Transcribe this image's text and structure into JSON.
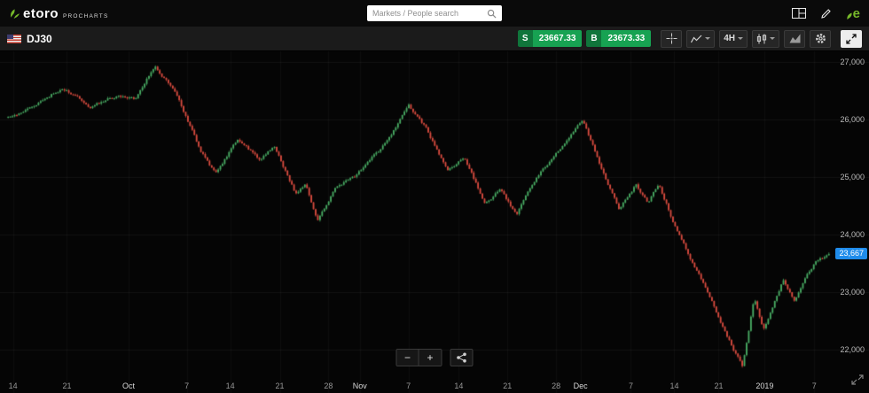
{
  "header": {
    "logo_text": "etoro",
    "logo_sub": "PROCHARTS",
    "etoro_badge": "e",
    "search_placeholder": "Markets / People search"
  },
  "toolbar": {
    "instrument": "DJ30",
    "sell_label": "S",
    "sell_price": "23667.33",
    "buy_label": "B",
    "buy_price": "23673.33",
    "timeframe": "4H"
  },
  "zoom_controls": {
    "minus": "−",
    "plus": "+"
  },
  "chart_data": {
    "type": "candlestick",
    "title": "DJ30 4H candlestick chart",
    "instrument": "DJ30",
    "timeframe": "4H",
    "last_price": 23667.33,
    "last_price_label": "23,667",
    "candle_count": 380,
    "colors": {
      "up": "#48ab63",
      "down": "#d84b3f",
      "price_tag": "#1f8ceb"
    },
    "y_axis": {
      "min": 21250,
      "max": 27190,
      "ticks": [
        {
          "label": "27,000",
          "value": 27000
        },
        {
          "label": "26,000",
          "value": 26000
        },
        {
          "label": "25,000",
          "value": 25000
        },
        {
          "label": "24,000",
          "value": 24000
        },
        {
          "label": "23,000",
          "value": 23000
        },
        {
          "label": "22,000",
          "value": 22000
        }
      ]
    },
    "x_axis": {
      "labels": [
        {
          "text": "14",
          "pos": 0.015,
          "major": false
        },
        {
          "text": "21",
          "pos": 0.077,
          "major": false
        },
        {
          "text": "Oct",
          "pos": 0.148,
          "major": true
        },
        {
          "text": "7",
          "pos": 0.215,
          "major": false
        },
        {
          "text": "14",
          "pos": 0.265,
          "major": false
        },
        {
          "text": "21",
          "pos": 0.322,
          "major": false
        },
        {
          "text": "28",
          "pos": 0.378,
          "major": false
        },
        {
          "text": "Nov",
          "pos": 0.414,
          "major": true
        },
        {
          "text": "7",
          "pos": 0.47,
          "major": false
        },
        {
          "text": "14",
          "pos": 0.528,
          "major": false
        },
        {
          "text": "21",
          "pos": 0.584,
          "major": false
        },
        {
          "text": "28",
          "pos": 0.64,
          "major": false
        },
        {
          "text": "Dec",
          "pos": 0.668,
          "major": true
        },
        {
          "text": "7",
          "pos": 0.726,
          "major": false
        },
        {
          "text": "14",
          "pos": 0.776,
          "major": false
        },
        {
          "text": "21",
          "pos": 0.827,
          "major": false
        },
        {
          "text": "2019",
          "pos": 0.88,
          "major": true
        },
        {
          "text": "7",
          "pos": 0.937,
          "major": false
        }
      ]
    },
    "waypoints": [
      [
        0.0,
        26050
      ],
      [
        0.03,
        26250
      ],
      [
        0.067,
        26600
      ],
      [
        0.1,
        26200
      ],
      [
        0.13,
        26400
      ],
      [
        0.155,
        26350
      ],
      [
        0.179,
        26950
      ],
      [
        0.205,
        26500
      ],
      [
        0.235,
        25450
      ],
      [
        0.253,
        25050
      ],
      [
        0.28,
        25650
      ],
      [
        0.305,
        25300
      ],
      [
        0.325,
        25550
      ],
      [
        0.35,
        24750
      ],
      [
        0.362,
        24950
      ],
      [
        0.377,
        24300
      ],
      [
        0.4,
        24850
      ],
      [
        0.425,
        25050
      ],
      [
        0.455,
        25500
      ],
      [
        0.488,
        26200
      ],
      [
        0.51,
        25800
      ],
      [
        0.535,
        25150
      ],
      [
        0.555,
        25400
      ],
      [
        0.58,
        24550
      ],
      [
        0.6,
        24800
      ],
      [
        0.62,
        24350
      ],
      [
        0.645,
        25000
      ],
      [
        0.672,
        25500
      ],
      [
        0.7,
        25950
      ],
      [
        0.722,
        25150
      ],
      [
        0.744,
        24480
      ],
      [
        0.765,
        24900
      ],
      [
        0.78,
        24520
      ],
      [
        0.793,
        24900
      ],
      [
        0.815,
        24100
      ],
      [
        0.835,
        23500
      ],
      [
        0.855,
        22900
      ],
      [
        0.875,
        22300
      ],
      [
        0.895,
        21720
      ],
      [
        0.909,
        22950
      ],
      [
        0.92,
        22400
      ],
      [
        0.944,
        23200
      ],
      [
        0.958,
        22850
      ],
      [
        0.985,
        23550
      ],
      [
        1.0,
        23667.33
      ]
    ]
  }
}
